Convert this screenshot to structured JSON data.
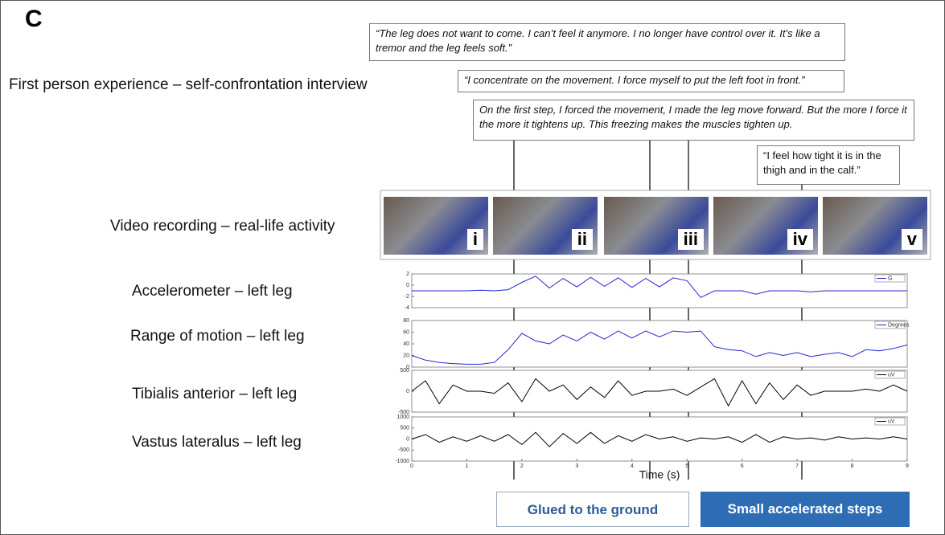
{
  "panel_label": "C",
  "rows": [
    "First person experience – self-confrontation interview",
    "Video recording – real-life activity",
    "Accelerometer – left leg",
    "Range of motion – left leg",
    "Tibialis anterior – left leg",
    "Vastus lateralus – left leg"
  ],
  "quotes": [
    "“The leg does not want to come. I can’t feel it anymore. I no longer have control over it. It’s like a tremor and the leg feels soft.”",
    "“I concentrate on the movement. I force myself to put the left foot in front.”",
    "On the first step, I forced the movement, I made the leg move forward. But the more I force it the more it tightens up. This freezing makes the muscles tighten up.",
    "“I feel how tight it is in the thigh and in the calf.”"
  ],
  "frames": [
    "i",
    "ii",
    "iii",
    "iv",
    "v"
  ],
  "phases": [
    "Glued to the ground",
    "Small accelerated steps"
  ],
  "chart_data": [
    {
      "type": "line",
      "x": [
        0,
        0.25,
        0.5,
        0.75,
        1,
        1.25,
        1.5,
        1.75,
        2,
        2.25,
        2.5,
        2.75,
        3,
        3.25,
        3.5,
        3.75,
        4,
        4.25,
        4.5,
        4.75,
        5,
        5.25,
        5.5,
        5.75,
        6,
        6.25,
        6.5,
        6.75,
        7,
        7.25,
        7.5,
        7.75,
        8,
        8.25,
        8.5,
        8.75,
        9
      ],
      "xlim": [
        0,
        9
      ],
      "ylim": [
        -4,
        2
      ],
      "yticks": [
        -4,
        -2,
        0,
        2
      ],
      "series": [
        {
          "name": "G",
          "color": "#2424d8",
          "values": [
            -1,
            -1,
            -1,
            -1,
            -1,
            -0.9,
            -1,
            -0.8,
            0.5,
            1.6,
            -0.5,
            1.2,
            -0.3,
            1.4,
            -0.2,
            1.3,
            -0.4,
            1.2,
            -0.3,
            1.3,
            0.8,
            -2.2,
            -1,
            -1,
            -1,
            -1.6,
            -1,
            -1,
            -1,
            -1.2,
            -1,
            -1,
            -1,
            -1,
            -1,
            -1,
            -1
          ]
        }
      ]
    },
    {
      "type": "line",
      "x": [
        0,
        0.25,
        0.5,
        0.75,
        1,
        1.25,
        1.5,
        1.75,
        2,
        2.25,
        2.5,
        2.75,
        3,
        3.25,
        3.5,
        3.75,
        4,
        4.25,
        4.5,
        4.75,
        5,
        5.25,
        5.5,
        5.75,
        6,
        6.25,
        6.5,
        6.75,
        7,
        7.25,
        7.5,
        7.75,
        8,
        8.25,
        8.5,
        8.75,
        9
      ],
      "xlim": [
        0,
        9
      ],
      "ylim": [
        0,
        80
      ],
      "yticks": [
        0,
        20,
        40,
        60,
        80
      ],
      "series": [
        {
          "name": "Degrees",
          "color": "#2424d8",
          "values": [
            20,
            12,
            8,
            6,
            5,
            5,
            8,
            30,
            58,
            45,
            40,
            55,
            45,
            60,
            48,
            62,
            50,
            62,
            52,
            62,
            60,
            62,
            35,
            30,
            28,
            18,
            25,
            20,
            25,
            18,
            22,
            25,
            18,
            30,
            28,
            32,
            38
          ]
        }
      ]
    },
    {
      "type": "line",
      "x": [
        0,
        0.25,
        0.5,
        0.75,
        1,
        1.25,
        1.5,
        1.75,
        2,
        2.25,
        2.5,
        2.75,
        3,
        3.25,
        3.5,
        3.75,
        4,
        4.25,
        4.5,
        4.75,
        5,
        5.25,
        5.5,
        5.75,
        6,
        6.25,
        6.5,
        6.75,
        7,
        7.25,
        7.5,
        7.75,
        8,
        8.25,
        8.5,
        8.75,
        9
      ],
      "xlim": [
        0,
        9
      ],
      "ylim": [
        -500,
        500
      ],
      "yticks": [
        -500,
        0,
        500
      ],
      "series": [
        {
          "name": "uV",
          "color": "#000000",
          "values": [
            0,
            250,
            -300,
            150,
            0,
            0,
            -50,
            200,
            -250,
            300,
            0,
            150,
            -200,
            100,
            -150,
            250,
            -100,
            0,
            0,
            50,
            -100,
            100,
            300,
            -350,
            250,
            -300,
            200,
            -200,
            150,
            -100,
            0,
            0,
            0,
            50,
            0,
            150,
            0
          ]
        }
      ]
    },
    {
      "type": "line",
      "x": [
        0,
        0.25,
        0.5,
        0.75,
        1,
        1.25,
        1.5,
        1.75,
        2,
        2.25,
        2.5,
        2.75,
        3,
        3.25,
        3.5,
        3.75,
        4,
        4.25,
        4.5,
        4.75,
        5,
        5.25,
        5.5,
        5.75,
        6,
        6.25,
        6.5,
        6.75,
        7,
        7.25,
        7.5,
        7.75,
        8,
        8.25,
        8.5,
        8.75,
        9
      ],
      "xlim": [
        0,
        9
      ],
      "ylim": [
        -1000,
        1000
      ],
      "yticks": [
        -1000,
        -500,
        0,
        500,
        1000
      ],
      "xticks": [
        0,
        1,
        2,
        3,
        4,
        5,
        6,
        7,
        8,
        9
      ],
      "xlabel": "Time (s)",
      "series": [
        {
          "name": "uV",
          "color": "#000000",
          "values": [
            0,
            200,
            -150,
            100,
            -100,
            150,
            -100,
            200,
            -250,
            300,
            -350,
            250,
            -200,
            300,
            -200,
            150,
            -100,
            200,
            0,
            100,
            -100,
            50,
            0,
            100,
            -150,
            200,
            -150,
            100,
            0,
            50,
            -50,
            100,
            0,
            50,
            0,
            100,
            0
          ]
        }
      ]
    }
  ]
}
